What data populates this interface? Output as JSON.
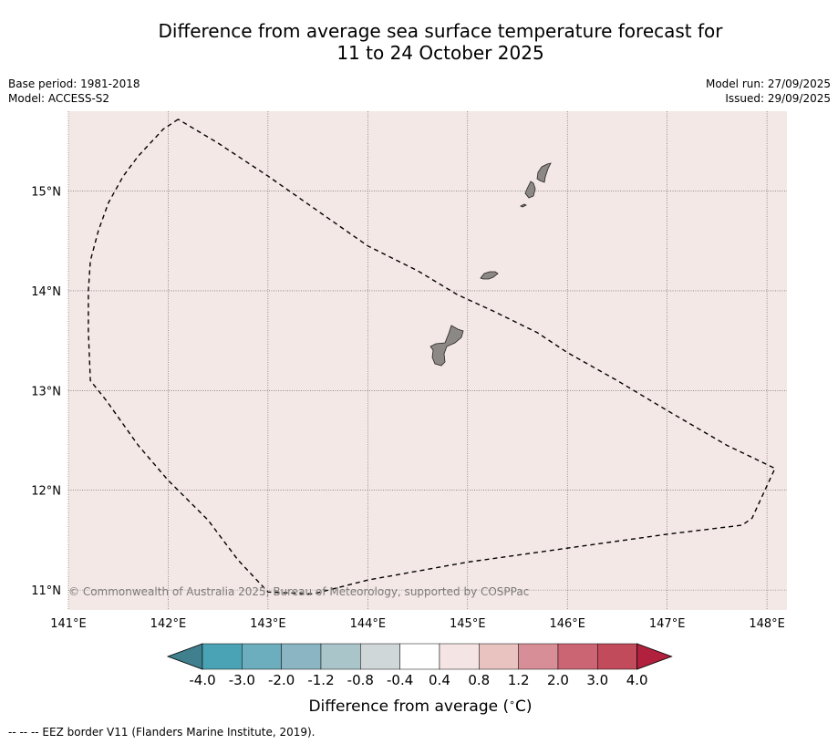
{
  "title": {
    "line1": "Difference from average sea surface temperature forecast for",
    "line2": "11 to 24 October 2025"
  },
  "meta": {
    "base_period": "Base period: 1981-2018",
    "model": "Model: ACCESS-S2",
    "model_run": "Model run: 27/09/2025",
    "issued": "Issued: 29/09/2025"
  },
  "map": {
    "lon_range": [
      141.0,
      148.2
    ],
    "lat_range": [
      10.8,
      15.8
    ],
    "lon_ticks": [
      "141°E",
      "142°E",
      "143°E",
      "144°E",
      "145°E",
      "146°E",
      "147°E",
      "148°E"
    ],
    "lat_ticks": [
      "11°N",
      "12°N",
      "13°N",
      "14°N",
      "15°N"
    ],
    "ocean_fill_color": "#f4e8e6",
    "land_color": "#8c8886",
    "copyright": "© Commonwealth of Australia 2025, Bureau of Meteorology, supported by COSPPac",
    "eez_border": [
      [
        142.1,
        15.72
      ],
      [
        141.95,
        15.62
      ],
      [
        141.7,
        15.35
      ],
      [
        141.55,
        15.15
      ],
      [
        141.4,
        14.88
      ],
      [
        141.3,
        14.6
      ],
      [
        141.22,
        14.3
      ],
      [
        141.2,
        14.0
      ],
      [
        141.2,
        13.6
      ],
      [
        141.22,
        13.1
      ],
      [
        141.38,
        12.9
      ],
      [
        141.7,
        12.45
      ],
      [
        142.0,
        12.1
      ],
      [
        142.4,
        11.7
      ],
      [
        142.7,
        11.3
      ],
      [
        143.0,
        10.98
      ],
      [
        143.45,
        10.96
      ],
      [
        144.0,
        11.1
      ],
      [
        145.0,
        11.28
      ],
      [
        146.0,
        11.42
      ],
      [
        147.0,
        11.56
      ],
      [
        147.75,
        11.65
      ],
      [
        147.85,
        11.72
      ],
      [
        148.08,
        12.22
      ],
      [
        147.6,
        12.45
      ],
      [
        147.0,
        12.8
      ],
      [
        146.5,
        13.1
      ],
      [
        146.0,
        13.38
      ],
      [
        145.7,
        13.58
      ],
      [
        145.25,
        13.8
      ],
      [
        144.9,
        13.96
      ],
      [
        144.5,
        14.2
      ],
      [
        144.0,
        14.45
      ],
      [
        143.5,
        14.8
      ],
      [
        143.0,
        15.15
      ],
      [
        142.5,
        15.48
      ],
      [
        142.1,
        15.72
      ]
    ]
  },
  "colorbar": {
    "label": "Difference from average (",
    "label_symbol": "∘",
    "label_unit": "C)",
    "colors": [
      "#3f7f8e",
      "#4aa3b5",
      "#6cadbe",
      "#8bb5c2",
      "#a9c5ca",
      "#d0d7d9",
      "#ffffff",
      "#f4e5e4",
      "#e9c3c0",
      "#d88e96",
      "#cc6573",
      "#c14a5b",
      "#b1203c"
    ],
    "tick_labels": [
      "-4.0",
      "-3.0",
      "-2.0",
      "-1.2",
      "-0.8",
      "-0.4",
      "0.4",
      "0.8",
      "1.2",
      "2.0",
      "3.0",
      "4.0"
    ]
  },
  "footnote": "--  --  -- EEZ border V11 (Flanders Marine Institute, 2019)."
}
